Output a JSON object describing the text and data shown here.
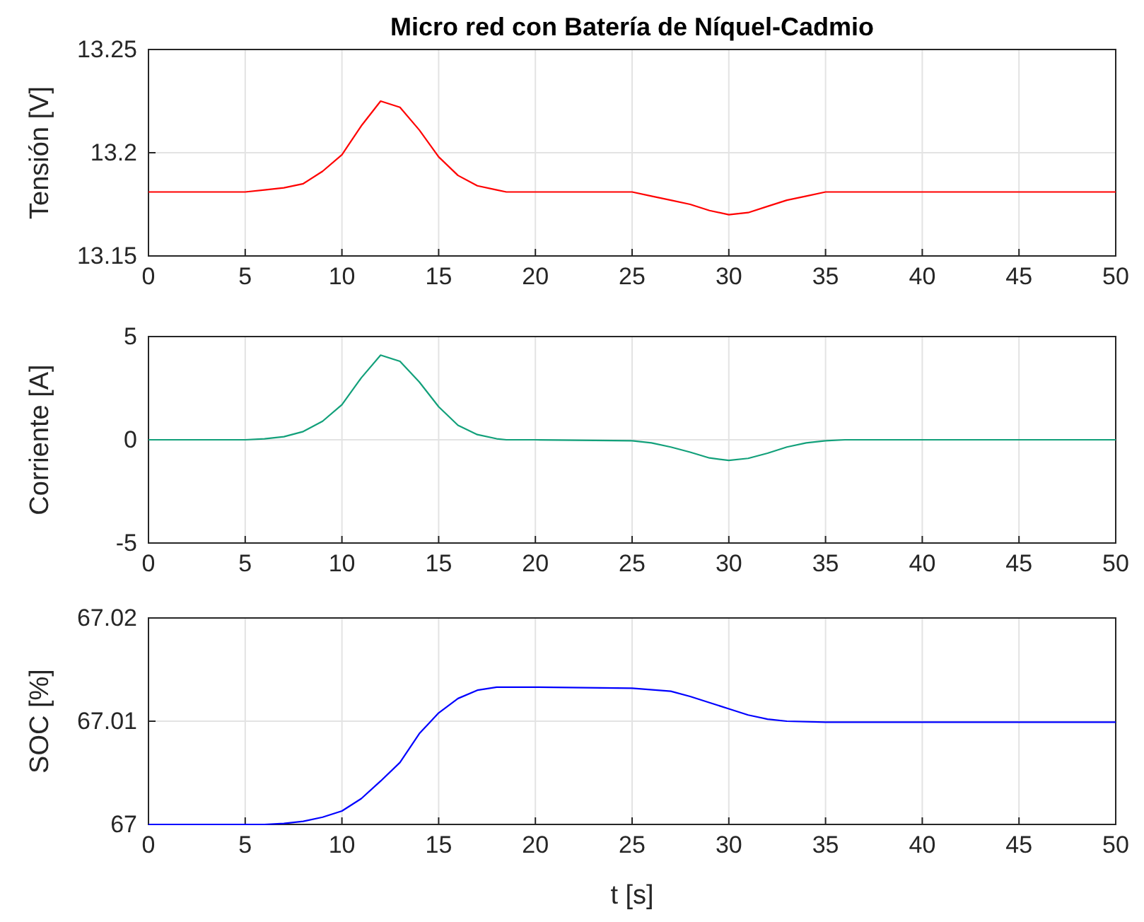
{
  "chart_data": [
    {
      "type": "line",
      "title": "Micro red con Batería de Níquel-Cadmio",
      "ylabel": "Tensión [V]",
      "xlim": [
        0,
        50
      ],
      "xticks": [
        0,
        5,
        10,
        15,
        20,
        25,
        30,
        35,
        40,
        45,
        50
      ],
      "ylim": [
        13.15,
        13.25
      ],
      "yticks": [
        13.15,
        13.2,
        13.25
      ],
      "grid": true,
      "x": [
        0,
        5,
        6,
        7,
        8,
        9,
        10,
        11,
        12,
        13,
        14,
        15,
        16,
        17,
        18,
        18.5,
        20,
        25,
        26,
        27,
        28,
        29,
        30,
        31,
        32,
        33,
        34,
        35,
        36,
        40,
        50
      ],
      "series": [
        {
          "color": "#ff0000",
          "values": [
            13.181,
            13.181,
            13.182,
            13.183,
            13.185,
            13.191,
            13.199,
            13.213,
            13.225,
            13.222,
            13.211,
            13.198,
            13.189,
            13.184,
            13.182,
            13.181,
            13.181,
            13.181,
            13.179,
            13.177,
            13.175,
            13.172,
            13.17,
            13.171,
            13.174,
            13.177,
            13.179,
            13.181,
            13.181,
            13.181,
            13.181
          ]
        }
      ]
    },
    {
      "type": "line",
      "ylabel": "Corriente [A]",
      "xlim": [
        0,
        50
      ],
      "xticks": [
        0,
        5,
        10,
        15,
        20,
        25,
        30,
        35,
        40,
        45,
        50
      ],
      "ylim": [
        -5,
        5
      ],
      "yticks": [
        -5,
        0,
        5
      ],
      "grid": true,
      "x": [
        0,
        5,
        6,
        7,
        8,
        9,
        10,
        11,
        12,
        13,
        14,
        15,
        16,
        17,
        18,
        18.5,
        20,
        25,
        26,
        27,
        28,
        29,
        30,
        31,
        32,
        33,
        34,
        35,
        36,
        40,
        50
      ],
      "series": [
        {
          "color": "#12a07a",
          "values": [
            0,
            0,
            0.05,
            0.15,
            0.4,
            0.9,
            1.7,
            3.0,
            4.1,
            3.8,
            2.8,
            1.6,
            0.7,
            0.25,
            0.05,
            0,
            0,
            -0.05,
            -0.15,
            -0.35,
            -0.6,
            -0.88,
            -1.0,
            -0.9,
            -0.65,
            -0.35,
            -0.15,
            -0.05,
            0,
            0,
            0
          ]
        }
      ]
    },
    {
      "type": "line",
      "ylabel": "SOC [%]",
      "xlabel": "t [s]",
      "xlim": [
        0,
        50
      ],
      "xticks": [
        0,
        5,
        10,
        15,
        20,
        25,
        30,
        35,
        40,
        45,
        50
      ],
      "ylim": [
        67,
        67.02
      ],
      "yticks": [
        67,
        67.01,
        67.02
      ],
      "grid": true,
      "x": [
        0,
        5,
        6,
        7,
        8,
        9,
        10,
        11,
        12,
        13,
        14,
        15,
        16,
        17,
        18,
        20,
        25,
        27,
        28,
        29,
        30,
        31,
        32,
        33,
        35,
        40,
        50
      ],
      "series": [
        {
          "color": "#0000ff",
          "values": [
            67,
            67,
            67,
            67.0001,
            67.0003,
            67.0007,
            67.0013,
            67.0025,
            67.0042,
            67.006,
            67.0088,
            67.0108,
            67.0122,
            67.013,
            67.0133,
            67.0133,
            67.0132,
            67.0129,
            67.0124,
            67.0118,
            67.0112,
            67.0106,
            67.0102,
            67.01,
            67.0099,
            67.0099,
            67.0099
          ]
        }
      ]
    }
  ]
}
